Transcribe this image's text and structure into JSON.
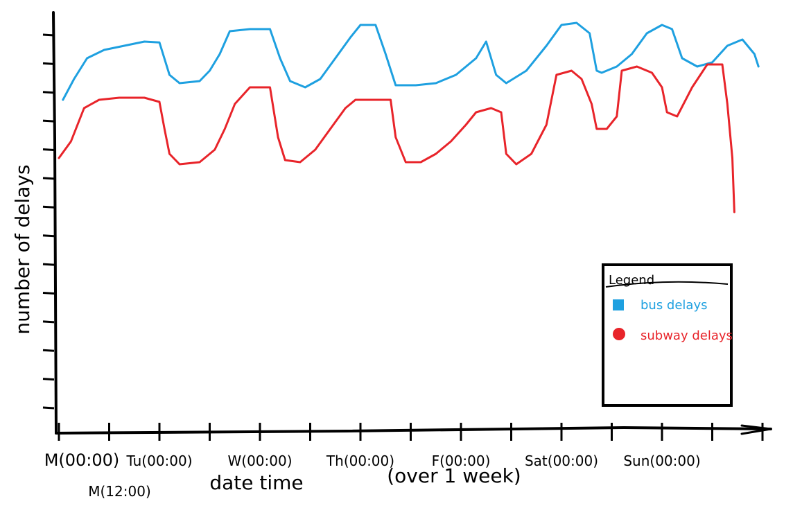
{
  "chart_data": {
    "type": "line",
    "xlabel": "date time",
    "xlabel_note": "(over 1 week)",
    "ylabel": "number of delays",
    "x_tick_labels": [
      "M(00:00)",
      "M(12:00)",
      "Tu(00:00)",
      "W(00:00)",
      "Th(00:00)",
      "F(00:00)",
      "Sat(00:00)",
      "Sun(00:00)"
    ],
    "x_tick_days": [
      0,
      0.5,
      1,
      2,
      3,
      4,
      5,
      6
    ],
    "xlim": [
      0,
      7
    ],
    "ylim": [
      0,
      10
    ],
    "y_tick_count": 14,
    "grid": false,
    "legend": {
      "title": "Legend",
      "position": "bottom-right",
      "entries": [
        {
          "series": "bus",
          "label": "bus delays"
        },
        {
          "series": "subway",
          "label": "subway delays"
        }
      ]
    },
    "series": [
      {
        "name": "bus delays",
        "color": "#1ea0e0",
        "points": [
          [
            0.04,
            7.9
          ],
          [
            0.15,
            8.4
          ],
          [
            0.28,
            8.9
          ],
          [
            0.45,
            9.1
          ],
          [
            0.65,
            9.2
          ],
          [
            0.85,
            9.3
          ],
          [
            1.0,
            9.28
          ],
          [
            1.1,
            8.5
          ],
          [
            1.2,
            8.3
          ],
          [
            1.4,
            8.35
          ],
          [
            1.5,
            8.6
          ],
          [
            1.6,
            9.0
          ],
          [
            1.7,
            9.55
          ],
          [
            1.9,
            9.6
          ],
          [
            2.1,
            9.6
          ],
          [
            2.2,
            8.9
          ],
          [
            2.3,
            8.35
          ],
          [
            2.45,
            8.2
          ],
          [
            2.6,
            8.4
          ],
          [
            2.75,
            8.9
          ],
          [
            2.9,
            9.4
          ],
          [
            3.0,
            9.7
          ],
          [
            3.15,
            9.7
          ],
          [
            3.25,
            9.0
          ],
          [
            3.35,
            8.25
          ],
          [
            3.55,
            8.25
          ],
          [
            3.75,
            8.3
          ],
          [
            3.95,
            8.5
          ],
          [
            4.15,
            8.9
          ],
          [
            4.25,
            9.3
          ],
          [
            4.35,
            8.5
          ],
          [
            4.45,
            8.3
          ],
          [
            4.65,
            8.6
          ],
          [
            4.85,
            9.2
          ],
          [
            5.0,
            9.7
          ],
          [
            5.15,
            9.75
          ],
          [
            5.28,
            9.5
          ],
          [
            5.35,
            8.6
          ],
          [
            5.4,
            8.55
          ],
          [
            5.55,
            8.7
          ],
          [
            5.7,
            9.0
          ],
          [
            5.85,
            9.5
          ],
          [
            6.0,
            9.7
          ],
          [
            6.1,
            9.6
          ],
          [
            6.2,
            8.9
          ],
          [
            6.35,
            8.7
          ],
          [
            6.5,
            8.8
          ],
          [
            6.65,
            9.2
          ],
          [
            6.8,
            9.35
          ],
          [
            6.92,
            9.0
          ],
          [
            6.96,
            8.7
          ]
        ]
      },
      {
        "name": "subway delays",
        "color": "#e8242a",
        "points": [
          [
            0.0,
            6.5
          ],
          [
            0.12,
            6.9
          ],
          [
            0.25,
            7.7
          ],
          [
            0.4,
            7.9
          ],
          [
            0.6,
            7.95
          ],
          [
            0.85,
            7.95
          ],
          [
            1.0,
            7.85
          ],
          [
            1.05,
            7.2
          ],
          [
            1.1,
            6.6
          ],
          [
            1.2,
            6.35
          ],
          [
            1.4,
            6.4
          ],
          [
            1.55,
            6.7
          ],
          [
            1.65,
            7.2
          ],
          [
            1.75,
            7.8
          ],
          [
            1.9,
            8.2
          ],
          [
            2.1,
            8.2
          ],
          [
            2.18,
            7.0
          ],
          [
            2.25,
            6.45
          ],
          [
            2.4,
            6.4
          ],
          [
            2.55,
            6.7
          ],
          [
            2.7,
            7.2
          ],
          [
            2.85,
            7.7
          ],
          [
            2.95,
            7.9
          ],
          [
            3.15,
            7.9
          ],
          [
            3.3,
            7.9
          ],
          [
            3.35,
            7.0
          ],
          [
            3.45,
            6.4
          ],
          [
            3.6,
            6.4
          ],
          [
            3.75,
            6.6
          ],
          [
            3.9,
            6.9
          ],
          [
            4.05,
            7.3
          ],
          [
            4.15,
            7.6
          ],
          [
            4.3,
            7.7
          ],
          [
            4.4,
            7.6
          ],
          [
            4.45,
            6.6
          ],
          [
            4.55,
            6.35
          ],
          [
            4.7,
            6.6
          ],
          [
            4.85,
            7.3
          ],
          [
            4.95,
            8.5
          ],
          [
            5.1,
            8.6
          ],
          [
            5.2,
            8.4
          ],
          [
            5.3,
            7.8
          ],
          [
            5.35,
            7.2
          ],
          [
            5.45,
            7.2
          ],
          [
            5.55,
            7.5
          ],
          [
            5.6,
            8.6
          ],
          [
            5.75,
            8.7
          ],
          [
            5.9,
            8.55
          ],
          [
            6.0,
            8.2
          ],
          [
            6.05,
            7.6
          ],
          [
            6.15,
            7.5
          ],
          [
            6.3,
            8.2
          ],
          [
            6.45,
            8.75
          ],
          [
            6.6,
            8.75
          ],
          [
            6.65,
            7.8
          ],
          [
            6.7,
            6.5
          ],
          [
            6.72,
            5.2
          ]
        ]
      }
    ]
  }
}
